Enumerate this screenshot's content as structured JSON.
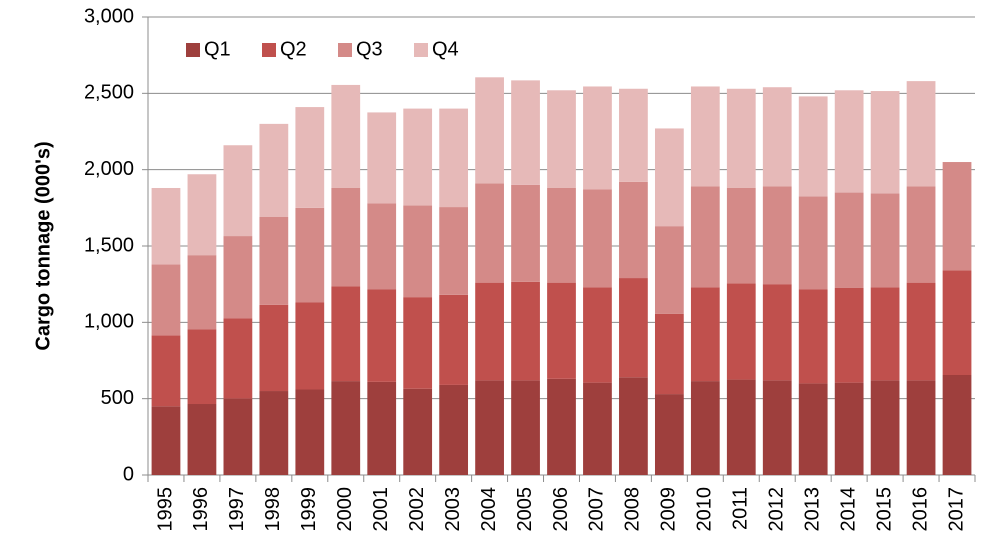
{
  "chart_data": {
    "type": "stacked_bar",
    "y_label": "Cargo tonnage (000's)",
    "categories": [
      "1995",
      "1996",
      "1997",
      "1998",
      "1999",
      "2000",
      "2001",
      "2002",
      "2003",
      "2004",
      "2005",
      "2006",
      "2007",
      "2008",
      "2009",
      "2010",
      "2011",
      "2012",
      "2013",
      "2014",
      "2015",
      "2016",
      "2017"
    ],
    "series": [
      {
        "name": "Q1",
        "color": "#9e3f3d",
        "values": [
          450,
          465,
          500,
          550,
          560,
          615,
          610,
          565,
          590,
          620,
          620,
          630,
          605,
          640,
          530,
          615,
          625,
          620,
          600,
          605,
          620,
          620,
          655
        ]
      },
      {
        "name": "Q2",
        "color": "#c0504d",
        "values": [
          465,
          490,
          525,
          565,
          570,
          620,
          605,
          600,
          590,
          640,
          645,
          630,
          625,
          650,
          525,
          615,
          630,
          630,
          615,
          620,
          610,
          640,
          685
        ]
      },
      {
        "name": "Q3",
        "color": "#d48a88",
        "values": [
          465,
          485,
          540,
          575,
          620,
          645,
          565,
          600,
          575,
          650,
          635,
          620,
          640,
          630,
          575,
          660,
          625,
          640,
          610,
          625,
          615,
          630,
          710
        ]
      },
      {
        "name": "Q4",
        "color": "#e6b9b8",
        "values": [
          500,
          530,
          595,
          610,
          660,
          675,
          595,
          635,
          645,
          695,
          685,
          640,
          675,
          610,
          640,
          655,
          650,
          650,
          655,
          670,
          670,
          690,
          null
        ]
      }
    ],
    "ylim": [
      0,
      3000
    ],
    "yticks": [
      0,
      500,
      {
        "value": 1000,
        "label": "1,000"
      },
      {
        "value": 1500,
        "label": "1,500"
      },
      {
        "value": 2000,
        "label": "2,000"
      },
      {
        "value": 2500,
        "label": "2,500"
      },
      {
        "value": 3000,
        "label": "3,000"
      }
    ],
    "grid": true,
    "legend": "top-left"
  }
}
